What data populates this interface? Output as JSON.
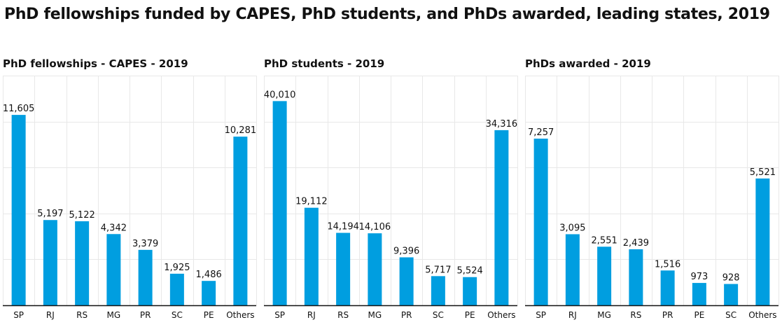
{
  "title": "PhD fellowships funded by CAPES, PhD students, and PhDs awarded, leading states, 2019",
  "colors": {
    "bar": "#009ee0",
    "grid": "#e8e8e8",
    "axis": "#111111"
  },
  "chart_data": [
    {
      "type": "bar",
      "title": "PhD fellowships - CAPES - 2019",
      "categories": [
        "SP",
        "RJ",
        "RS",
        "MG",
        "PR",
        "SC",
        "PE",
        "Others"
      ],
      "values": [
        11605,
        5197,
        5122,
        4342,
        3379,
        1925,
        1486,
        10281
      ],
      "labels": [
        "11,605",
        "5,197",
        "5,122",
        "4,342",
        "3,379",
        "1,925",
        "1,486",
        "10,281"
      ],
      "ylim": [
        0,
        14000
      ],
      "xlabel": "",
      "ylabel": ""
    },
    {
      "type": "bar",
      "title": "PhD students - 2019",
      "categories": [
        "SP",
        "RJ",
        "RS",
        "MG",
        "PR",
        "SC",
        "PE",
        "Others"
      ],
      "values": [
        40010,
        19112,
        14194,
        14106,
        9396,
        5717,
        5524,
        34316
      ],
      "labels": [
        "40,010",
        "19,112",
        "14,194",
        "14,106",
        "9,396",
        "5,717",
        "5,524",
        "34,316"
      ],
      "ylim": [
        0,
        45000
      ],
      "xlabel": "",
      "ylabel": ""
    },
    {
      "type": "bar",
      "title": "PhDs awarded - 2019",
      "categories": [
        "SP",
        "RJ",
        "MG",
        "RS",
        "PR",
        "PE",
        "SC",
        "Others"
      ],
      "values": [
        7257,
        3095,
        2551,
        2439,
        1516,
        973,
        928,
        5521
      ],
      "labels": [
        "7,257",
        "3,095",
        "2,551",
        "2,439",
        "1,516",
        "973",
        "928",
        "5,521"
      ],
      "ylim": [
        0,
        10000
      ],
      "xlabel": "",
      "ylabel": ""
    }
  ]
}
